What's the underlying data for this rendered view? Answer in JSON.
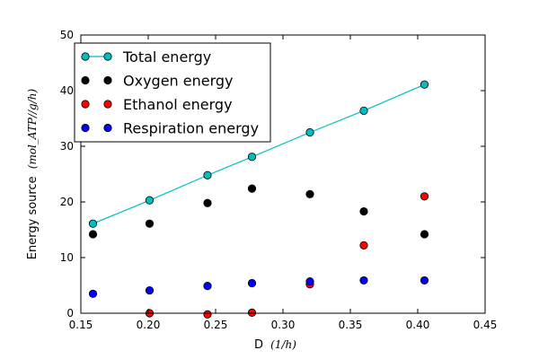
{
  "chart_data": {
    "type": "scatter",
    "xlabel": "D",
    "xlabel_unit": "(1/h)",
    "ylabel": "Energy source",
    "ylabel_unit": "(mol_ATP//g/h)",
    "xlim": [
      0.15,
      0.45
    ],
    "ylim": [
      0,
      50
    ],
    "x_ticks": [
      "0.15",
      "0.20",
      "0.25",
      "0.30",
      "0.35",
      "0.40",
      "0.45"
    ],
    "y_ticks": [
      "0",
      "10",
      "20",
      "30",
      "40",
      "50"
    ],
    "grid": false,
    "legend_position": "top-left",
    "x": [
      0.159,
      0.201,
      0.244,
      0.277,
      0.32,
      0.36,
      0.405
    ],
    "series": [
      {
        "name": "Total energy",
        "color": "#00bfbf",
        "style": "line-marker",
        "values": [
          16.1,
          20.3,
          24.8,
          28.1,
          32.5,
          36.4,
          41.1
        ]
      },
      {
        "name": "Oxygen energy",
        "color": "#000000",
        "style": "marker",
        "values": [
          14.2,
          16.1,
          19.8,
          22.4,
          21.4,
          18.3,
          14.2
        ]
      },
      {
        "name": "Ethanol energy",
        "color": "#ff0000",
        "style": "marker",
        "values": [
          null,
          0.0,
          -0.2,
          0.1,
          5.2,
          12.2,
          21.0
        ]
      },
      {
        "name": "Respiration energy",
        "color": "#0000ff",
        "style": "marker",
        "values": [
          3.5,
          4.1,
          4.9,
          5.4,
          5.7,
          5.9,
          5.9
        ]
      }
    ]
  }
}
